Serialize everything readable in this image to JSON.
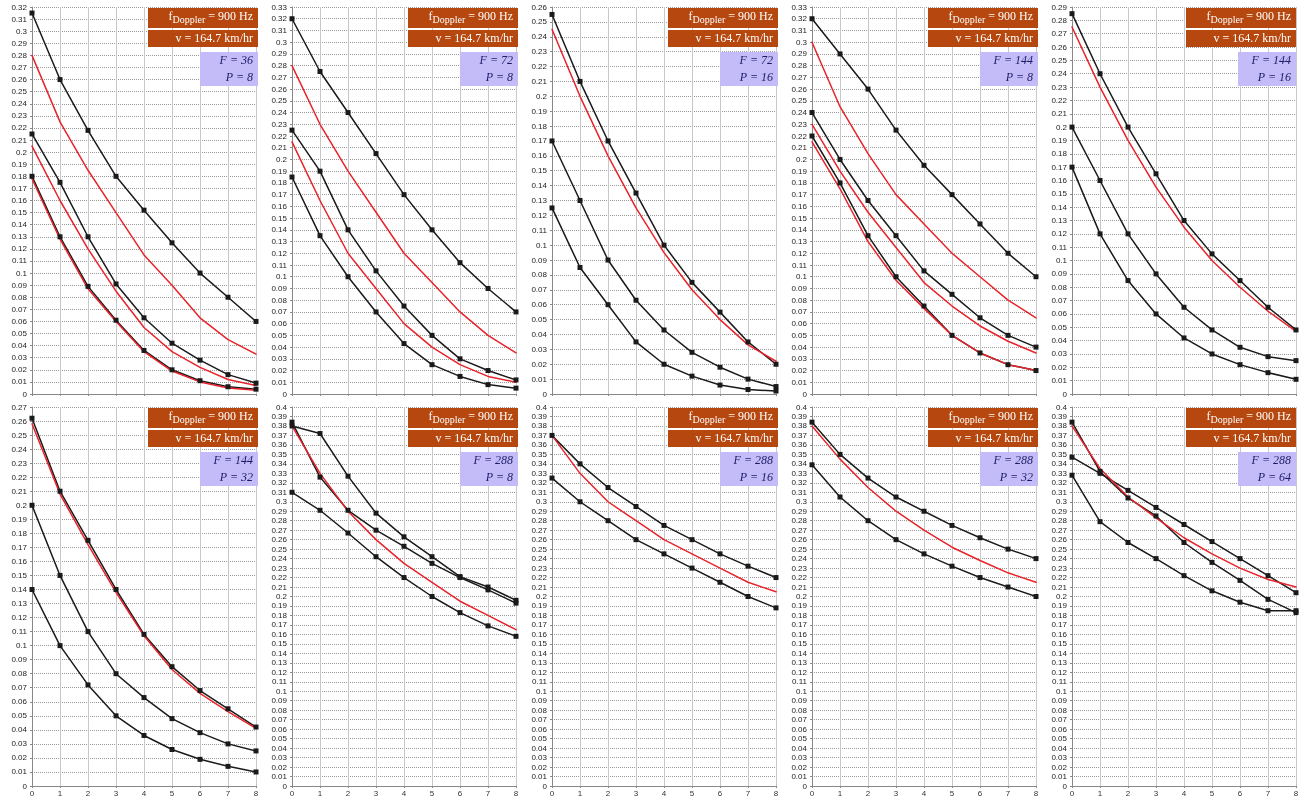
{
  "chart_data": [
    {
      "type": "line",
      "x": [
        0,
        1,
        2,
        3,
        4,
        5,
        6,
        7,
        8
      ],
      "xlim": [
        0,
        8
      ],
      "xticks": [
        0,
        1,
        2,
        3,
        4,
        5,
        6,
        7,
        8
      ],
      "ylim": [
        0,
        0.32
      ],
      "yticks": [
        0,
        0.01,
        0.02,
        0.03,
        0.04,
        0.05,
        0.06,
        0.07,
        0.08,
        0.09,
        0.1,
        0.11,
        0.12,
        0.13,
        0.14,
        0.15,
        0.16,
        0.17,
        0.18,
        0.19,
        0.2,
        0.21,
        0.22,
        0.23,
        0.24,
        0.25,
        0.26,
        0.27,
        0.28,
        0.29,
        0.3,
        0.31,
        0.32
      ],
      "grid": true,
      "tick_labels": "y",
      "marker": "square",
      "annotations": [
        "f$_{Doppler}$ = 900 Hz",
        "v = 164.7 km/hr",
        "F = 36",
        "P = 8"
      ],
      "series": [
        {
          "color": "#1a1a1a",
          "values": [
            0.315,
            0.26,
            0.218,
            0.18,
            0.152,
            0.125,
            0.1,
            0.08,
            0.06
          ]
        },
        {
          "color": "#e8232a",
          "marker": "none",
          "values": [
            0.28,
            0.225,
            0.185,
            0.15,
            0.115,
            0.09,
            0.063,
            0.045,
            0.033
          ]
        },
        {
          "color": "#1a1a1a",
          "values": [
            0.215,
            0.175,
            0.13,
            0.091,
            0.063,
            0.042,
            0.028,
            0.016,
            0.009
          ]
        },
        {
          "color": "#e8232a",
          "marker": "none",
          "values": [
            0.205,
            0.16,
            0.12,
            0.085,
            0.055,
            0.035,
            0.022,
            0.012,
            0.007
          ]
        },
        {
          "color": "#1a1a1a",
          "values": [
            0.18,
            0.13,
            0.089,
            0.061,
            0.036,
            0.02,
            0.011,
            0.006,
            0.004
          ]
        },
        {
          "color": "#e8232a",
          "marker": "none",
          "values": [
            0.178,
            0.128,
            0.087,
            0.06,
            0.035,
            0.019,
            0.01,
            0.005,
            0.003
          ]
        }
      ]
    },
    {
      "type": "line",
      "x": [
        0,
        1,
        2,
        3,
        4,
        5,
        6,
        7,
        8
      ],
      "xlim": [
        0,
        8
      ],
      "xticks": [
        0,
        1,
        2,
        3,
        4,
        5,
        6,
        7,
        8
      ],
      "ylim": [
        0,
        0.33
      ],
      "yticks": [
        0,
        0.01,
        0.02,
        0.03,
        0.04,
        0.05,
        0.06,
        0.07,
        0.08,
        0.09,
        0.1,
        0.11,
        0.12,
        0.13,
        0.14,
        0.15,
        0.16,
        0.17,
        0.18,
        0.19,
        0.2,
        0.21,
        0.22,
        0.23,
        0.24,
        0.25,
        0.26,
        0.27,
        0.28,
        0.29,
        0.3,
        0.31,
        0.32,
        0.33
      ],
      "grid": true,
      "tick_labels": "y",
      "marker": "square",
      "annotations": [
        "f$_{Doppler}$ = 900 Hz",
        "v = 164.7 km/hr",
        "F = 72",
        "P = 8"
      ],
      "series": [
        {
          "color": "#1a1a1a",
          "values": [
            0.32,
            0.275,
            0.24,
            0.205,
            0.17,
            0.14,
            0.112,
            0.09,
            0.07
          ]
        },
        {
          "color": "#e8232a",
          "marker": "none",
          "values": [
            0.28,
            0.23,
            0.19,
            0.155,
            0.12,
            0.095,
            0.07,
            0.05,
            0.035
          ]
        },
        {
          "color": "#1a1a1a",
          "values": [
            0.225,
            0.19,
            0.14,
            0.105,
            0.075,
            0.05,
            0.03,
            0.02,
            0.012
          ]
        },
        {
          "color": "#e8232a",
          "marker": "none",
          "values": [
            0.215,
            0.165,
            0.12,
            0.09,
            0.06,
            0.04,
            0.025,
            0.015,
            0.01
          ]
        },
        {
          "color": "#1a1a1a",
          "values": [
            0.185,
            0.135,
            0.1,
            0.07,
            0.043,
            0.025,
            0.015,
            0.008,
            0.005
          ]
        }
      ]
    },
    {
      "type": "line",
      "x": [
        0,
        1,
        2,
        3,
        4,
        5,
        6,
        7,
        8
      ],
      "xlim": [
        0,
        8
      ],
      "xticks": [
        0,
        1,
        2,
        3,
        4,
        5,
        6,
        7,
        8
      ],
      "ylim": [
        0,
        0.26
      ],
      "yticks": [
        0,
        0.01,
        0.02,
        0.03,
        0.04,
        0.05,
        0.06,
        0.07,
        0.08,
        0.09,
        0.1,
        0.11,
        0.12,
        0.13,
        0.14,
        0.15,
        0.16,
        0.17,
        0.18,
        0.19,
        0.2,
        0.21,
        0.22,
        0.23,
        0.24,
        0.25,
        0.26
      ],
      "grid": true,
      "tick_labels": "y",
      "marker": "square",
      "annotations": [
        "f$_{Doppler}$ = 900 Hz",
        "v = 164.7 km/hr",
        "F = 72",
        "P = 16"
      ],
      "series": [
        {
          "color": "#1a1a1a",
          "values": [
            0.255,
            0.21,
            0.17,
            0.135,
            0.1,
            0.075,
            0.055,
            0.035,
            0.02
          ]
        },
        {
          "color": "#e8232a",
          "marker": "none",
          "values": [
            0.245,
            0.2,
            0.16,
            0.125,
            0.095,
            0.07,
            0.05,
            0.033,
            0.022
          ]
        },
        {
          "color": "#1a1a1a",
          "values": [
            0.17,
            0.13,
            0.09,
            0.063,
            0.043,
            0.028,
            0.018,
            0.01,
            0.005
          ]
        },
        {
          "color": "#1a1a1a",
          "values": [
            0.125,
            0.085,
            0.06,
            0.035,
            0.02,
            0.012,
            0.006,
            0.003,
            0.002
          ]
        }
      ]
    },
    {
      "type": "line",
      "x": [
        0,
        1,
        2,
        3,
        4,
        5,
        6,
        7,
        8
      ],
      "xlim": [
        0,
        8
      ],
      "xticks": [
        0,
        1,
        2,
        3,
        4,
        5,
        6,
        7,
        8
      ],
      "ylim": [
        0,
        0.33
      ],
      "yticks": [
        0,
        0.01,
        0.02,
        0.03,
        0.04,
        0.05,
        0.06,
        0.07,
        0.08,
        0.09,
        0.1,
        0.11,
        0.12,
        0.13,
        0.14,
        0.15,
        0.16,
        0.17,
        0.18,
        0.19,
        0.2,
        0.21,
        0.22,
        0.23,
        0.24,
        0.25,
        0.26,
        0.27,
        0.28,
        0.29,
        0.3,
        0.31,
        0.32,
        0.33
      ],
      "grid": true,
      "tick_labels": "y",
      "marker": "square",
      "annotations": [
        "f$_{Doppler}$ = 900 Hz",
        "v = 164.7 km/hr",
        "F = 144",
        "P = 8"
      ],
      "series": [
        {
          "color": "#1a1a1a",
          "values": [
            0.32,
            0.29,
            0.26,
            0.225,
            0.195,
            0.17,
            0.145,
            0.12,
            0.1
          ]
        },
        {
          "color": "#e8232a",
          "marker": "none",
          "values": [
            0.3,
            0.245,
            0.205,
            0.17,
            0.145,
            0.12,
            0.1,
            0.08,
            0.065
          ]
        },
        {
          "color": "#1a1a1a",
          "values": [
            0.24,
            0.2,
            0.165,
            0.135,
            0.105,
            0.085,
            0.065,
            0.05,
            0.04
          ]
        },
        {
          "color": "#e8232a",
          "marker": "none",
          "values": [
            0.23,
            0.19,
            0.155,
            0.125,
            0.095,
            0.075,
            0.058,
            0.045,
            0.035
          ]
        },
        {
          "color": "#1a1a1a",
          "values": [
            0.22,
            0.18,
            0.135,
            0.1,
            0.075,
            0.05,
            0.035,
            0.025,
            0.02
          ]
        },
        {
          "color": "#e8232a",
          "marker": "none",
          "values": [
            0.215,
            0.175,
            0.13,
            0.097,
            0.073,
            0.05,
            0.035,
            0.025,
            0.02
          ]
        }
      ]
    },
    {
      "type": "line",
      "x": [
        0,
        1,
        2,
        3,
        4,
        5,
        6,
        7,
        8
      ],
      "xlim": [
        0,
        8
      ],
      "xticks": [
        0,
        1,
        2,
        3,
        4,
        5,
        6,
        7,
        8
      ],
      "ylim": [
        0,
        0.29
      ],
      "yticks": [
        0,
        0.01,
        0.02,
        0.03,
        0.04,
        0.05,
        0.06,
        0.07,
        0.08,
        0.09,
        0.1,
        0.11,
        0.12,
        0.13,
        0.14,
        0.15,
        0.16,
        0.17,
        0.18,
        0.19,
        0.2,
        0.21,
        0.22,
        0.23,
        0.24,
        0.25,
        0.26,
        0.27,
        0.28,
        0.29
      ],
      "grid": true,
      "tick_labels": "y",
      "marker": "square",
      "annotations": [
        "f$_{Doppler}$ = 900 Hz",
        "v = 164.7 km/hr",
        "F = 144",
        "P = 16"
      ],
      "series": [
        {
          "color": "#1a1a1a",
          "values": [
            0.285,
            0.24,
            0.2,
            0.165,
            0.13,
            0.105,
            0.085,
            0.065,
            0.048
          ]
        },
        {
          "color": "#e8232a",
          "marker": "none",
          "values": [
            0.275,
            0.23,
            0.19,
            0.155,
            0.125,
            0.1,
            0.08,
            0.062,
            0.047
          ]
        },
        {
          "color": "#1a1a1a",
          "values": [
            0.2,
            0.16,
            0.12,
            0.09,
            0.065,
            0.048,
            0.035,
            0.028,
            0.025
          ]
        },
        {
          "color": "#1a1a1a",
          "values": [
            0.17,
            0.12,
            0.085,
            0.06,
            0.042,
            0.03,
            0.022,
            0.016,
            0.011
          ]
        }
      ]
    },
    {
      "type": "line",
      "x": [
        0,
        1,
        2,
        3,
        4,
        5,
        6,
        7,
        8
      ],
      "xlim": [
        0,
        8
      ],
      "xticks": [
        0,
        1,
        2,
        3,
        4,
        5,
        6,
        7,
        8
      ],
      "ylim": [
        0,
        0.27
      ],
      "yticks": [
        0,
        0.01,
        0.02,
        0.03,
        0.04,
        0.05,
        0.06,
        0.07,
        0.08,
        0.09,
        0.1,
        0.11,
        0.12,
        0.13,
        0.14,
        0.15,
        0.16,
        0.17,
        0.18,
        0.19,
        0.2,
        0.21,
        0.22,
        0.23,
        0.24,
        0.25,
        0.26,
        0.27
      ],
      "grid": true,
      "marker": "square",
      "annotations": [
        "f$_{Doppler}$ = 900 Hz",
        "v = 164.7 km/hr",
        "F = 144",
        "P = 32"
      ],
      "series": [
        {
          "color": "#1a1a1a",
          "values": [
            0.262,
            0.21,
            0.175,
            0.14,
            0.108,
            0.085,
            0.068,
            0.055,
            0.042
          ]
        },
        {
          "color": "#e8232a",
          "marker": "none",
          "values": [
            0.258,
            0.208,
            0.172,
            0.138,
            0.107,
            0.083,
            0.066,
            0.053,
            0.041
          ]
        },
        {
          "color": "#1a1a1a",
          "values": [
            0.2,
            0.15,
            0.11,
            0.08,
            0.063,
            0.048,
            0.038,
            0.03,
            0.025
          ]
        },
        {
          "color": "#1a1a1a",
          "values": [
            0.14,
            0.1,
            0.072,
            0.05,
            0.036,
            0.026,
            0.019,
            0.014,
            0.01
          ]
        }
      ]
    },
    {
      "type": "line",
      "x": [
        0,
        1,
        2,
        3,
        4,
        5,
        6,
        7,
        8
      ],
      "xlim": [
        0,
        8
      ],
      "xticks": [
        0,
        1,
        2,
        3,
        4,
        5,
        6,
        7,
        8
      ],
      "ylim": [
        0,
        0.4
      ],
      "yticks": [
        0,
        0.01,
        0.02,
        0.03,
        0.04,
        0.05,
        0.06,
        0.07,
        0.08,
        0.09,
        0.1,
        0.11,
        0.12,
        0.13,
        0.14,
        0.15,
        0.16,
        0.17,
        0.18,
        0.19,
        0.2,
        0.21,
        0.22,
        0.23,
        0.24,
        0.25,
        0.26,
        0.27,
        0.28,
        0.29,
        0.3,
        0.31,
        0.32,
        0.33,
        0.34,
        0.35,
        0.36,
        0.37,
        0.38,
        0.39,
        0.4
      ],
      "grid": true,
      "marker": "square",
      "annotations": [
        "f$_{Doppler}$ = 900 Hz",
        "v = 164.7 km/hr",
        "F = 288",
        "P = 8"
      ],
      "series": [
        {
          "color": "#1a1a1a",
          "values": [
            0.38,
            0.372,
            0.327,
            0.288,
            0.263,
            0.242,
            0.221,
            0.21,
            0.196
          ]
        },
        {
          "color": "#1a1a1a",
          "values": [
            0.384,
            0.326,
            0.291,
            0.27,
            0.253,
            0.235,
            0.22,
            0.207,
            0.193
          ]
        },
        {
          "color": "#e8232a",
          "marker": "none",
          "values": [
            0.38,
            0.33,
            0.29,
            0.26,
            0.235,
            0.215,
            0.195,
            0.18,
            0.165
          ]
        },
        {
          "color": "#1a1a1a",
          "values": [
            0.31,
            0.291,
            0.267,
            0.242,
            0.22,
            0.2,
            0.183,
            0.169,
            0.158
          ]
        }
      ]
    },
    {
      "type": "line",
      "x": [
        0,
        1,
        2,
        3,
        4,
        5,
        6,
        7,
        8
      ],
      "xlim": [
        0,
        8
      ],
      "xticks": [
        0,
        1,
        2,
        3,
        4,
        5,
        6,
        7,
        8
      ],
      "ylim": [
        0,
        0.4
      ],
      "yticks": [
        0,
        0.01,
        0.02,
        0.03,
        0.04,
        0.05,
        0.06,
        0.07,
        0.08,
        0.09,
        0.1,
        0.11,
        0.12,
        0.13,
        0.14,
        0.15,
        0.16,
        0.17,
        0.18,
        0.19,
        0.2,
        0.21,
        0.22,
        0.23,
        0.24,
        0.25,
        0.26,
        0.27,
        0.28,
        0.29,
        0.3,
        0.31,
        0.32,
        0.33,
        0.34,
        0.35,
        0.36,
        0.37,
        0.38,
        0.39,
        0.4
      ],
      "grid": true,
      "marker": "square",
      "annotations": [
        "f$_{Doppler}$ = 900 Hz",
        "v = 164.7 km/hr",
        "F = 288",
        "P = 16"
      ],
      "series": [
        {
          "color": "#1a1a1a",
          "values": [
            0.37,
            0.34,
            0.315,
            0.295,
            0.275,
            0.26,
            0.245,
            0.232,
            0.22
          ]
        },
        {
          "color": "#e8232a",
          "marker": "none",
          "values": [
            0.37,
            0.33,
            0.3,
            0.28,
            0.26,
            0.245,
            0.23,
            0.215,
            0.205
          ]
        },
        {
          "color": "#1a1a1a",
          "values": [
            0.325,
            0.3,
            0.28,
            0.26,
            0.245,
            0.23,
            0.215,
            0.2,
            0.188
          ]
        }
      ]
    },
    {
      "type": "line",
      "x": [
        0,
        1,
        2,
        3,
        4,
        5,
        6,
        7,
        8
      ],
      "xlim": [
        0,
        8
      ],
      "xticks": [
        0,
        1,
        2,
        3,
        4,
        5,
        6,
        7,
        8
      ],
      "ylim": [
        0,
        0.4
      ],
      "yticks": [
        0,
        0.01,
        0.02,
        0.03,
        0.04,
        0.05,
        0.06,
        0.07,
        0.08,
        0.09,
        0.1,
        0.11,
        0.12,
        0.13,
        0.14,
        0.15,
        0.16,
        0.17,
        0.18,
        0.19,
        0.2,
        0.21,
        0.22,
        0.23,
        0.24,
        0.25,
        0.26,
        0.27,
        0.28,
        0.29,
        0.3,
        0.31,
        0.32,
        0.33,
        0.34,
        0.35,
        0.36,
        0.37,
        0.38,
        0.39,
        0.4
      ],
      "grid": true,
      "marker": "square",
      "annotations": [
        "f$_{Doppler}$ = 900 Hz",
        "v = 164.7 km/hr",
        "F = 288",
        "P = 32"
      ],
      "series": [
        {
          "color": "#1a1a1a",
          "values": [
            0.384,
            0.35,
            0.325,
            0.305,
            0.29,
            0.275,
            0.262,
            0.25,
            0.24
          ]
        },
        {
          "color": "#e8232a",
          "marker": "none",
          "values": [
            0.38,
            0.345,
            0.315,
            0.29,
            0.27,
            0.252,
            0.238,
            0.225,
            0.215
          ]
        },
        {
          "color": "#1a1a1a",
          "values": [
            0.339,
            0.305,
            0.28,
            0.26,
            0.245,
            0.232,
            0.22,
            0.21,
            0.2
          ]
        }
      ]
    },
    {
      "type": "line",
      "x": [
        0,
        1,
        2,
        3,
        4,
        5,
        6,
        7,
        8
      ],
      "xlim": [
        0,
        8
      ],
      "xticks": [
        0,
        1,
        2,
        3,
        4,
        5,
        6,
        7,
        8
      ],
      "ylim": [
        0,
        0.4
      ],
      "yticks": [
        0,
        0.01,
        0.02,
        0.03,
        0.04,
        0.05,
        0.06,
        0.07,
        0.08,
        0.09,
        0.1,
        0.11,
        0.12,
        0.13,
        0.14,
        0.15,
        0.16,
        0.17,
        0.18,
        0.19,
        0.2,
        0.21,
        0.22,
        0.23,
        0.24,
        0.25,
        0.26,
        0.27,
        0.28,
        0.29,
        0.3,
        0.31,
        0.32,
        0.33,
        0.34,
        0.35,
        0.36,
        0.37,
        0.38,
        0.39,
        0.4
      ],
      "grid": true,
      "marker": "square",
      "annotations": [
        "f$_{Doppler}$ = 900 Hz",
        "v = 164.7 km/hr",
        "F = 288",
        "P = 64"
      ],
      "series": [
        {
          "color": "#1a1a1a",
          "values": [
            0.384,
            0.332,
            0.304,
            0.285,
            0.257,
            0.236,
            0.217,
            0.197,
            0.183
          ]
        },
        {
          "color": "#1a1a1a",
          "values": [
            0.347,
            0.33,
            0.312,
            0.294,
            0.276,
            0.258,
            0.24,
            0.222,
            0.204
          ]
        },
        {
          "color": "#e8232a",
          "marker": "none",
          "values": [
            0.38,
            0.335,
            0.305,
            0.283,
            0.262,
            0.245,
            0.23,
            0.218,
            0.21
          ]
        },
        {
          "color": "#1a1a1a",
          "values": [
            0.328,
            0.279,
            0.257,
            0.24,
            0.222,
            0.206,
            0.194,
            0.185,
            0.185
          ]
        }
      ]
    }
  ]
}
